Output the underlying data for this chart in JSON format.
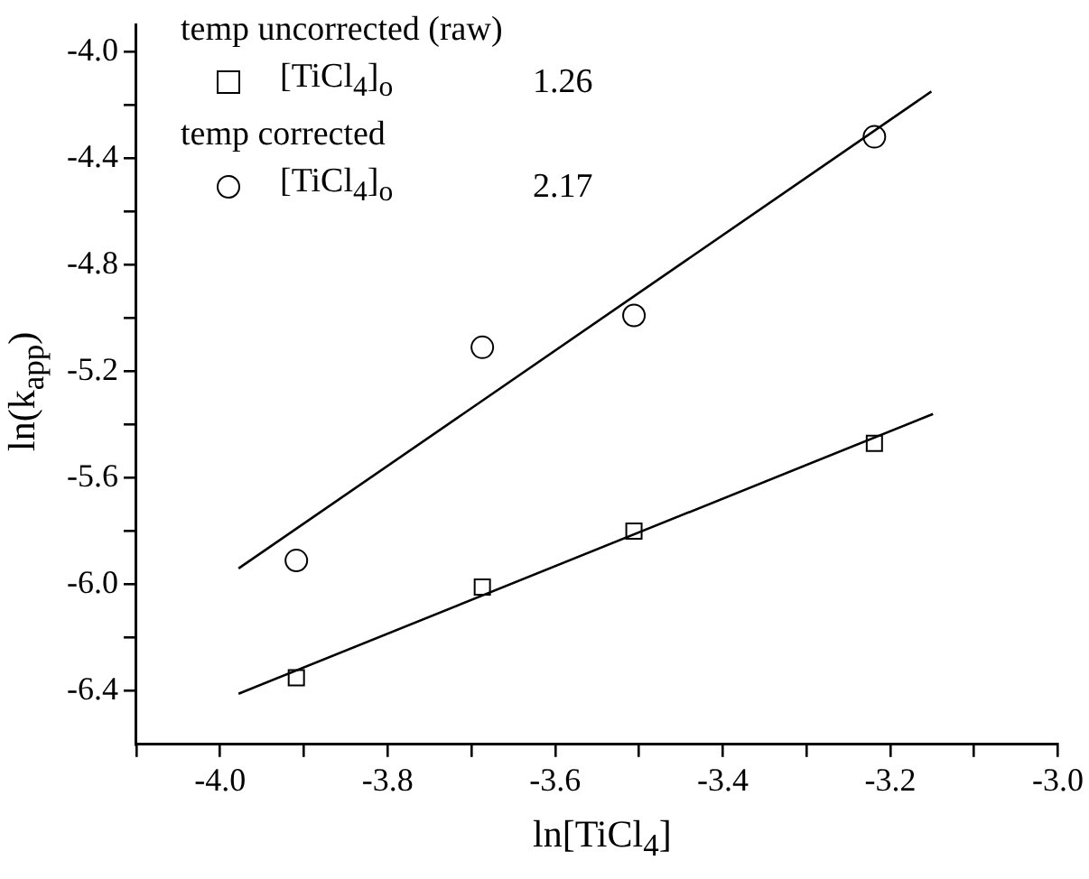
{
  "chart_data": {
    "type": "scatter",
    "xlabel": "ln[TiCl$_{4}$]",
    "ylabel": "ln(k$_{app}$)",
    "xlim": [
      -4.1,
      -3.0
    ],
    "xticks": [
      {
        "value": -4.1,
        "label": null
      },
      {
        "value": -4.0,
        "label": "-4.0"
      },
      {
        "value": -3.9,
        "label": null
      },
      {
        "value": -3.8,
        "label": "-3.8"
      },
      {
        "value": -3.7,
        "label": null
      },
      {
        "value": -3.6,
        "label": "-3.6"
      },
      {
        "value": -3.5,
        "label": null
      },
      {
        "value": -3.4,
        "label": "-3.4"
      },
      {
        "value": -3.3,
        "label": null
      },
      {
        "value": -3.2,
        "label": "-3.2"
      },
      {
        "value": -3.1,
        "label": null
      },
      {
        "value": -3.0,
        "label": "-3.0"
      }
    ],
    "ylim": [
      -6.6,
      -3.9
    ],
    "yticks": [
      {
        "value": -6.4,
        "label": "-6.4"
      },
      {
        "value": -6.2,
        "label": null
      },
      {
        "value": -6.0,
        "label": "-6.0"
      },
      {
        "value": -5.8,
        "label": null
      },
      {
        "value": -5.6,
        "label": "-5.6"
      },
      {
        "value": -5.4,
        "label": null
      },
      {
        "value": -5.2,
        "label": "-5.2"
      },
      {
        "value": -5.0,
        "label": null
      },
      {
        "value": -4.8,
        "label": "-4.8"
      },
      {
        "value": -4.6,
        "label": null
      },
      {
        "value": -4.4,
        "label": "-4.4"
      },
      {
        "value": -4.2,
        "label": null
      },
      {
        "value": -4.0,
        "label": "-4.0"
      }
    ],
    "grid": false,
    "legend": "top left",
    "annotations": [
      "temp uncorrected (raw)",
      "1.26",
      "temp corrected",
      "2.17"
    ],
    "series": [
      {
        "name": "[TiCl$_{4}$]$_{o}$",
        "type": "scatter",
        "marker": "square",
        "color": "#000000",
        "x": [
          -3.909,
          -3.687,
          -3.506,
          -3.219
        ],
        "values": [
          -6.35,
          -6.01,
          -5.8,
          -5.47
        ]
      },
      {
        "name": "[TiCl$_{4}$]$_{o}$",
        "type": "scatter",
        "marker": "circle",
        "color": "#000000",
        "x": [
          -3.909,
          -3.687,
          -3.506,
          -3.219
        ],
        "values": [
          -5.91,
          -5.11,
          -4.99,
          -4.32
        ]
      },
      {
        "type": "line",
        "marker": "none",
        "line_style": "solid",
        "color": "#000000",
        "x": [
          -3.978,
          -3.149
        ],
        "values": [
          -6.41,
          -5.36
        ]
      },
      {
        "type": "line",
        "marker": "none",
        "line_style": "solid",
        "color": "#000000",
        "x": [
          -3.978,
          -3.151
        ],
        "values": [
          -5.94,
          -4.15
        ]
      }
    ]
  }
}
